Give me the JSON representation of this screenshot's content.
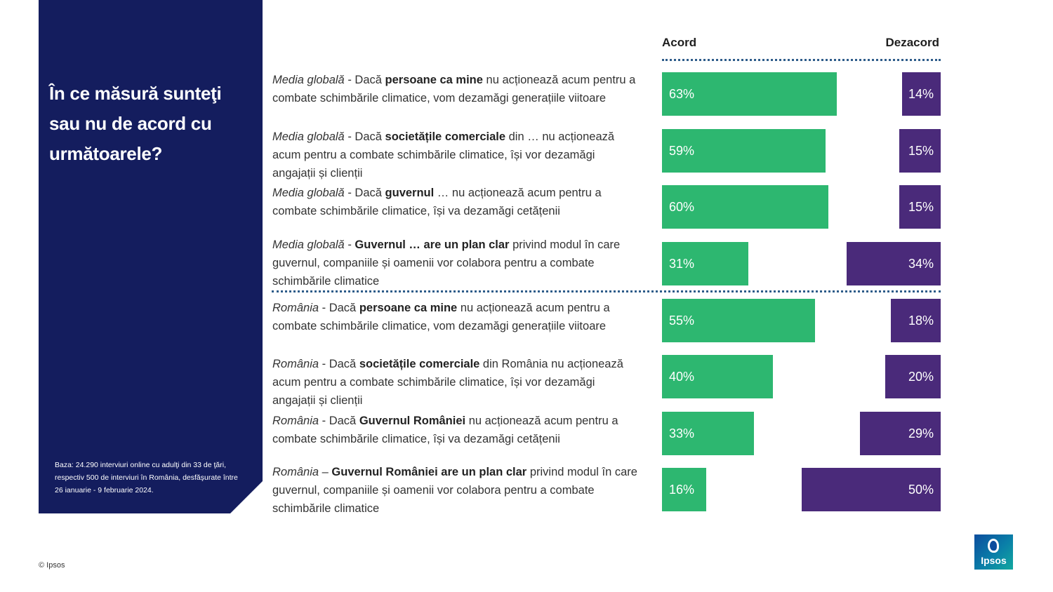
{
  "side": {
    "title": "În ce măsură sunteţi sau nu de acord cu următoarele?",
    "note": "Baza: 24.290 interviuri online cu adulţi din 33 de ţări, respectiv 500 de interviuri în România, desfăşurate între 26 ianuarie - 9 februarie 2024."
  },
  "footer": {
    "copyright": "© Ipsos"
  },
  "logo": {
    "text": "Ipsos"
  },
  "colors": {
    "agree": "#2db770",
    "disagree": "#4a2a7a",
    "panel": "#141d5e"
  },
  "chart_data": {
    "type": "bar",
    "orientation": "horizontal-diverging",
    "series_headers": [
      "Acord",
      "Dezacord"
    ],
    "categories": [
      {
        "prefix": "Media globală",
        "sep": " - Dacă ",
        "bold": "persoane ca mine",
        "rest": " nu acționează acum pentru a combate schimbările climatice, vom dezamăgi generațiile viitoare"
      },
      {
        "prefix": "Media globală",
        "sep": " - Dacă ",
        "bold": "societățile comerciale",
        "rest": " din … nu acționează acum pentru a combate schimbările climatice, își vor dezamăgi angajații și clienții"
      },
      {
        "prefix": "Media globală",
        "sep": " - Dacă ",
        "bold": "guvernul",
        "rest": " … nu acționează acum pentru a combate schimbările climatice, își va dezamăgi cetățenii"
      },
      {
        "prefix": "Media globală",
        "sep": " - ",
        "bold": "Guvernul … are un plan clar",
        "rest": " privind modul în care guvernul, companiile și oamenii vor colabora pentru a combate schimbările climatice"
      },
      {
        "prefix": "România",
        "sep": " - Dacă ",
        "bold": "persoane ca mine",
        "rest": " nu acționează acum pentru a combate schimbările climatice, vom dezamăgi generațiile viitoare"
      },
      {
        "prefix": "România",
        "sep": " - Dacă ",
        "bold": "societățile comerciale",
        "rest": " din România nu acționează acum pentru a combate schimbările climatice, își vor dezamăgi angajații și clienții"
      },
      {
        "prefix": "România",
        "sep": " - Dacă ",
        "bold": "Guvernul României",
        "rest": " nu acționează acum pentru a combate schimbările climatice, își va dezamăgi cetățenii"
      },
      {
        "prefix": "România",
        "sep": " – ",
        "bold": "Guvernul României are un plan clar",
        "rest": " privind modul în care guvernul, companiile și oamenii vor colabora pentru a combate schimbările climatice"
      }
    ],
    "series": [
      {
        "name": "Acord",
        "values": [
          63,
          59,
          60,
          31,
          55,
          40,
          33,
          16
        ],
        "labels": [
          "63%",
          "59%",
          "60%",
          "31%",
          "55%",
          "40%",
          "33%",
          "16%"
        ]
      },
      {
        "name": "Dezacord",
        "values": [
          14,
          15,
          15,
          34,
          18,
          20,
          29,
          50
        ],
        "labels": [
          "14%",
          "15%",
          "15%",
          "34%",
          "18%",
          "20%",
          "29%",
          "50%"
        ]
      }
    ],
    "unit": "%"
  }
}
